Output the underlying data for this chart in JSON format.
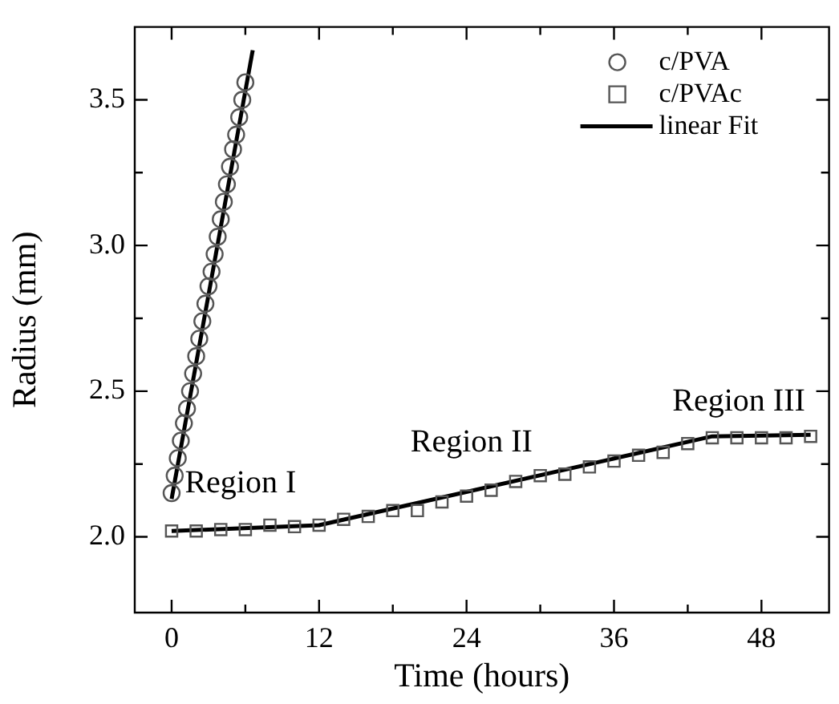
{
  "chart_data": {
    "type": "scatter",
    "xlabel": "Time (hours)",
    "ylabel": "Radius (mm)",
    "xlim": [
      -3,
      53.5
    ],
    "ylim": [
      1.74,
      3.75
    ],
    "xticks": [
      0,
      {
        "value": 6,
        "label": null
      },
      12,
      {
        "value": 18,
        "label": null
      },
      24,
      {
        "value": 30,
        "label": null
      },
      36,
      {
        "value": 42,
        "label": null
      },
      48
    ],
    "yticks": [
      {
        "value": 2,
        "label": "2.0"
      },
      {
        "value": 2.25,
        "label": null
      },
      {
        "value": 2.5,
        "label": "2.5"
      },
      {
        "value": 2.75,
        "label": null
      },
      {
        "value": 3,
        "label": "3.0"
      },
      {
        "value": 3.25,
        "label": null
      },
      {
        "value": 3.5,
        "label": "3.5"
      }
    ],
    "grid": false,
    "legend": "top right",
    "series": [
      {
        "name": "c/PVA",
        "marker": "circle",
        "color": "#555555",
        "x": [
          0,
          0.25,
          0.5,
          0.75,
          1,
          1.25,
          1.5,
          1.75,
          2,
          2.25,
          2.5,
          2.75,
          3,
          3.25,
          3.5,
          3.75,
          4,
          4.25,
          4.5,
          4.75,
          5,
          5.25,
          5.5,
          5.75,
          6
        ],
        "values": [
          2.15,
          2.21,
          2.27,
          2.33,
          2.39,
          2.44,
          2.5,
          2.56,
          2.62,
          2.68,
          2.74,
          2.8,
          2.86,
          2.91,
          2.97,
          3.03,
          3.09,
          3.15,
          3.21,
          3.27,
          3.33,
          3.38,
          3.44,
          3.5,
          3.56
        ]
      },
      {
        "name": "c/PVAc",
        "marker": "square",
        "color": "#555555",
        "x": [
          0,
          2,
          4,
          6,
          8,
          10,
          12,
          14,
          16,
          18,
          20,
          22,
          24,
          26,
          28,
          30,
          32,
          34,
          36,
          38,
          40,
          42,
          44,
          46,
          48,
          50,
          52
        ],
        "values": [
          2.02,
          2.02,
          2.025,
          2.025,
          2.04,
          2.035,
          2.04,
          2.06,
          2.07,
          2.09,
          2.09,
          2.12,
          2.14,
          2.16,
          2.19,
          2.21,
          2.215,
          2.24,
          2.26,
          2.28,
          2.29,
          2.32,
          2.34,
          2.34,
          2.34,
          2.34,
          2.345
        ]
      },
      {
        "name": "linear Fit",
        "type": "line",
        "marker": "none",
        "color": "#000000",
        "x": [
          0,
          6.6
        ],
        "values": [
          2.13,
          3.67
        ]
      },
      {
        "type": "line",
        "marker": "none",
        "color": "#000000",
        "x": [
          0,
          12,
          44,
          52
        ],
        "values": [
          2.02,
          2.04,
          2.345,
          2.35
        ]
      }
    ],
    "annotations": [
      "Region I",
      "Region II",
      "Region III"
    ]
  }
}
